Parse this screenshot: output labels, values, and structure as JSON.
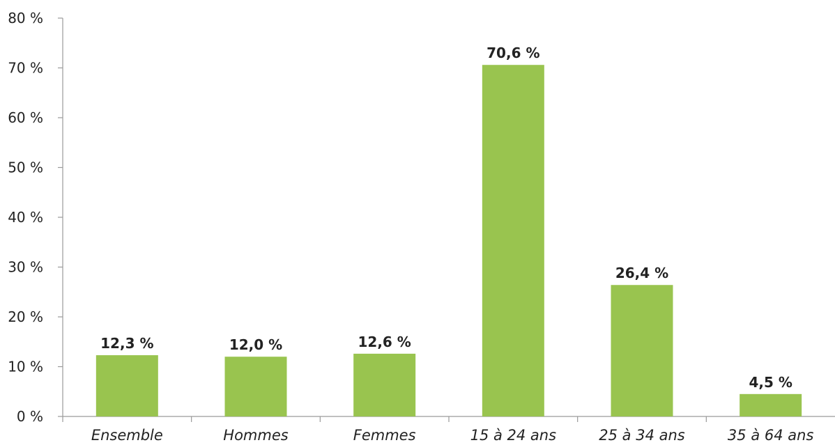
{
  "chart_data": {
    "type": "bar",
    "title": "",
    "xlabel": "",
    "ylabel": "",
    "categories": [
      "Ensemble",
      "Hommes",
      "Femmes",
      "15 à 24 ans",
      "25 à 34 ans",
      "35 à 64 ans"
    ],
    "values": [
      12.3,
      12.0,
      12.6,
      70.6,
      26.4,
      4.5
    ],
    "data_labels": [
      "12,3 %",
      "12,0 %",
      "12,6 %",
      "70,6 %",
      "26,4 %",
      "4,5 %"
    ],
    "ylim": [
      0,
      80
    ],
    "yticks": [
      0,
      10,
      20,
      30,
      40,
      50,
      60,
      70,
      80
    ],
    "ytick_labels": [
      "0 %",
      "10 %",
      "20 %",
      "30 %",
      "40 %",
      "50 %",
      "60 %",
      "70 %",
      "80 %"
    ],
    "grid": false,
    "legend": "none",
    "bar_color": "#99c44f",
    "axis_color": "#9a9a9a"
  }
}
